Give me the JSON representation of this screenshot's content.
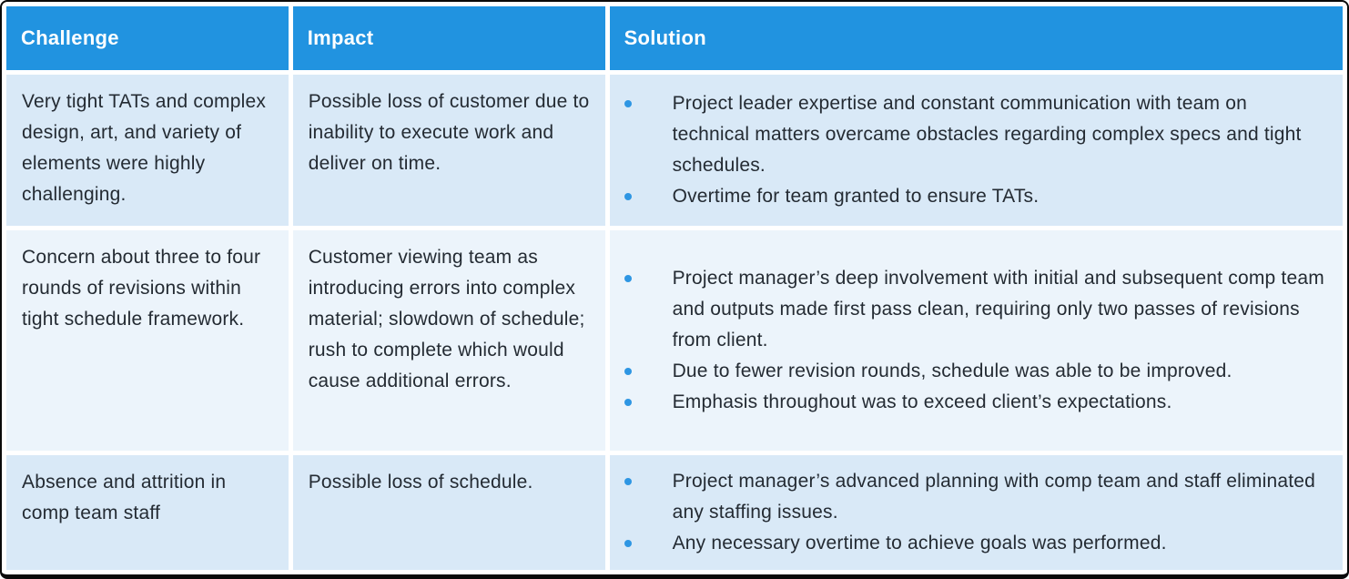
{
  "colors": {
    "header_bg": "#2193E0",
    "header_text": "#ffffff",
    "row_bg_odd": "#D9E9F7",
    "row_bg_even": "#ECF4FB",
    "body_text": "#242B33",
    "bullet_color": "#2E96E3",
    "border_color": "#0a0a0a"
  },
  "table": {
    "columns": [
      {
        "label": "Challenge"
      },
      {
        "label": "Impact"
      },
      {
        "label": "Solution"
      }
    ],
    "rows": [
      {
        "challenge": "Very tight TATs and complex design, art, and variety of elements were highly challenging.",
        "impact": "Possible loss of customer due to inability to execute work and deliver on time.",
        "solutions": [
          "Project leader expertise and constant communication with team on technical matters overcame obstacles regarding complex specs and tight schedules.",
          "Overtime for team granted to ensure TATs."
        ]
      },
      {
        "challenge": "Concern about three to four rounds of revisions within tight schedule framework.",
        "impact": "Customer viewing team as introducing errors into complex material; slowdown of schedule; rush to complete which would cause additional errors.",
        "solutions": [
          "Project manager’s deep involvement with initial and subsequent comp team and outputs made first pass clean, requiring only two passes of revisions from client.",
          "Due to fewer revision rounds, schedule was able to be improved.",
          "Emphasis throughout was to exceed client’s expectations."
        ]
      },
      {
        "challenge": "Absence and attrition in comp team staff",
        "impact": "Possible loss of schedule.",
        "solutions": [
          "Project manager’s advanced planning with comp team and staff eliminated any staffing issues.",
          "Any necessary overtime to achieve goals was performed."
        ]
      }
    ]
  }
}
